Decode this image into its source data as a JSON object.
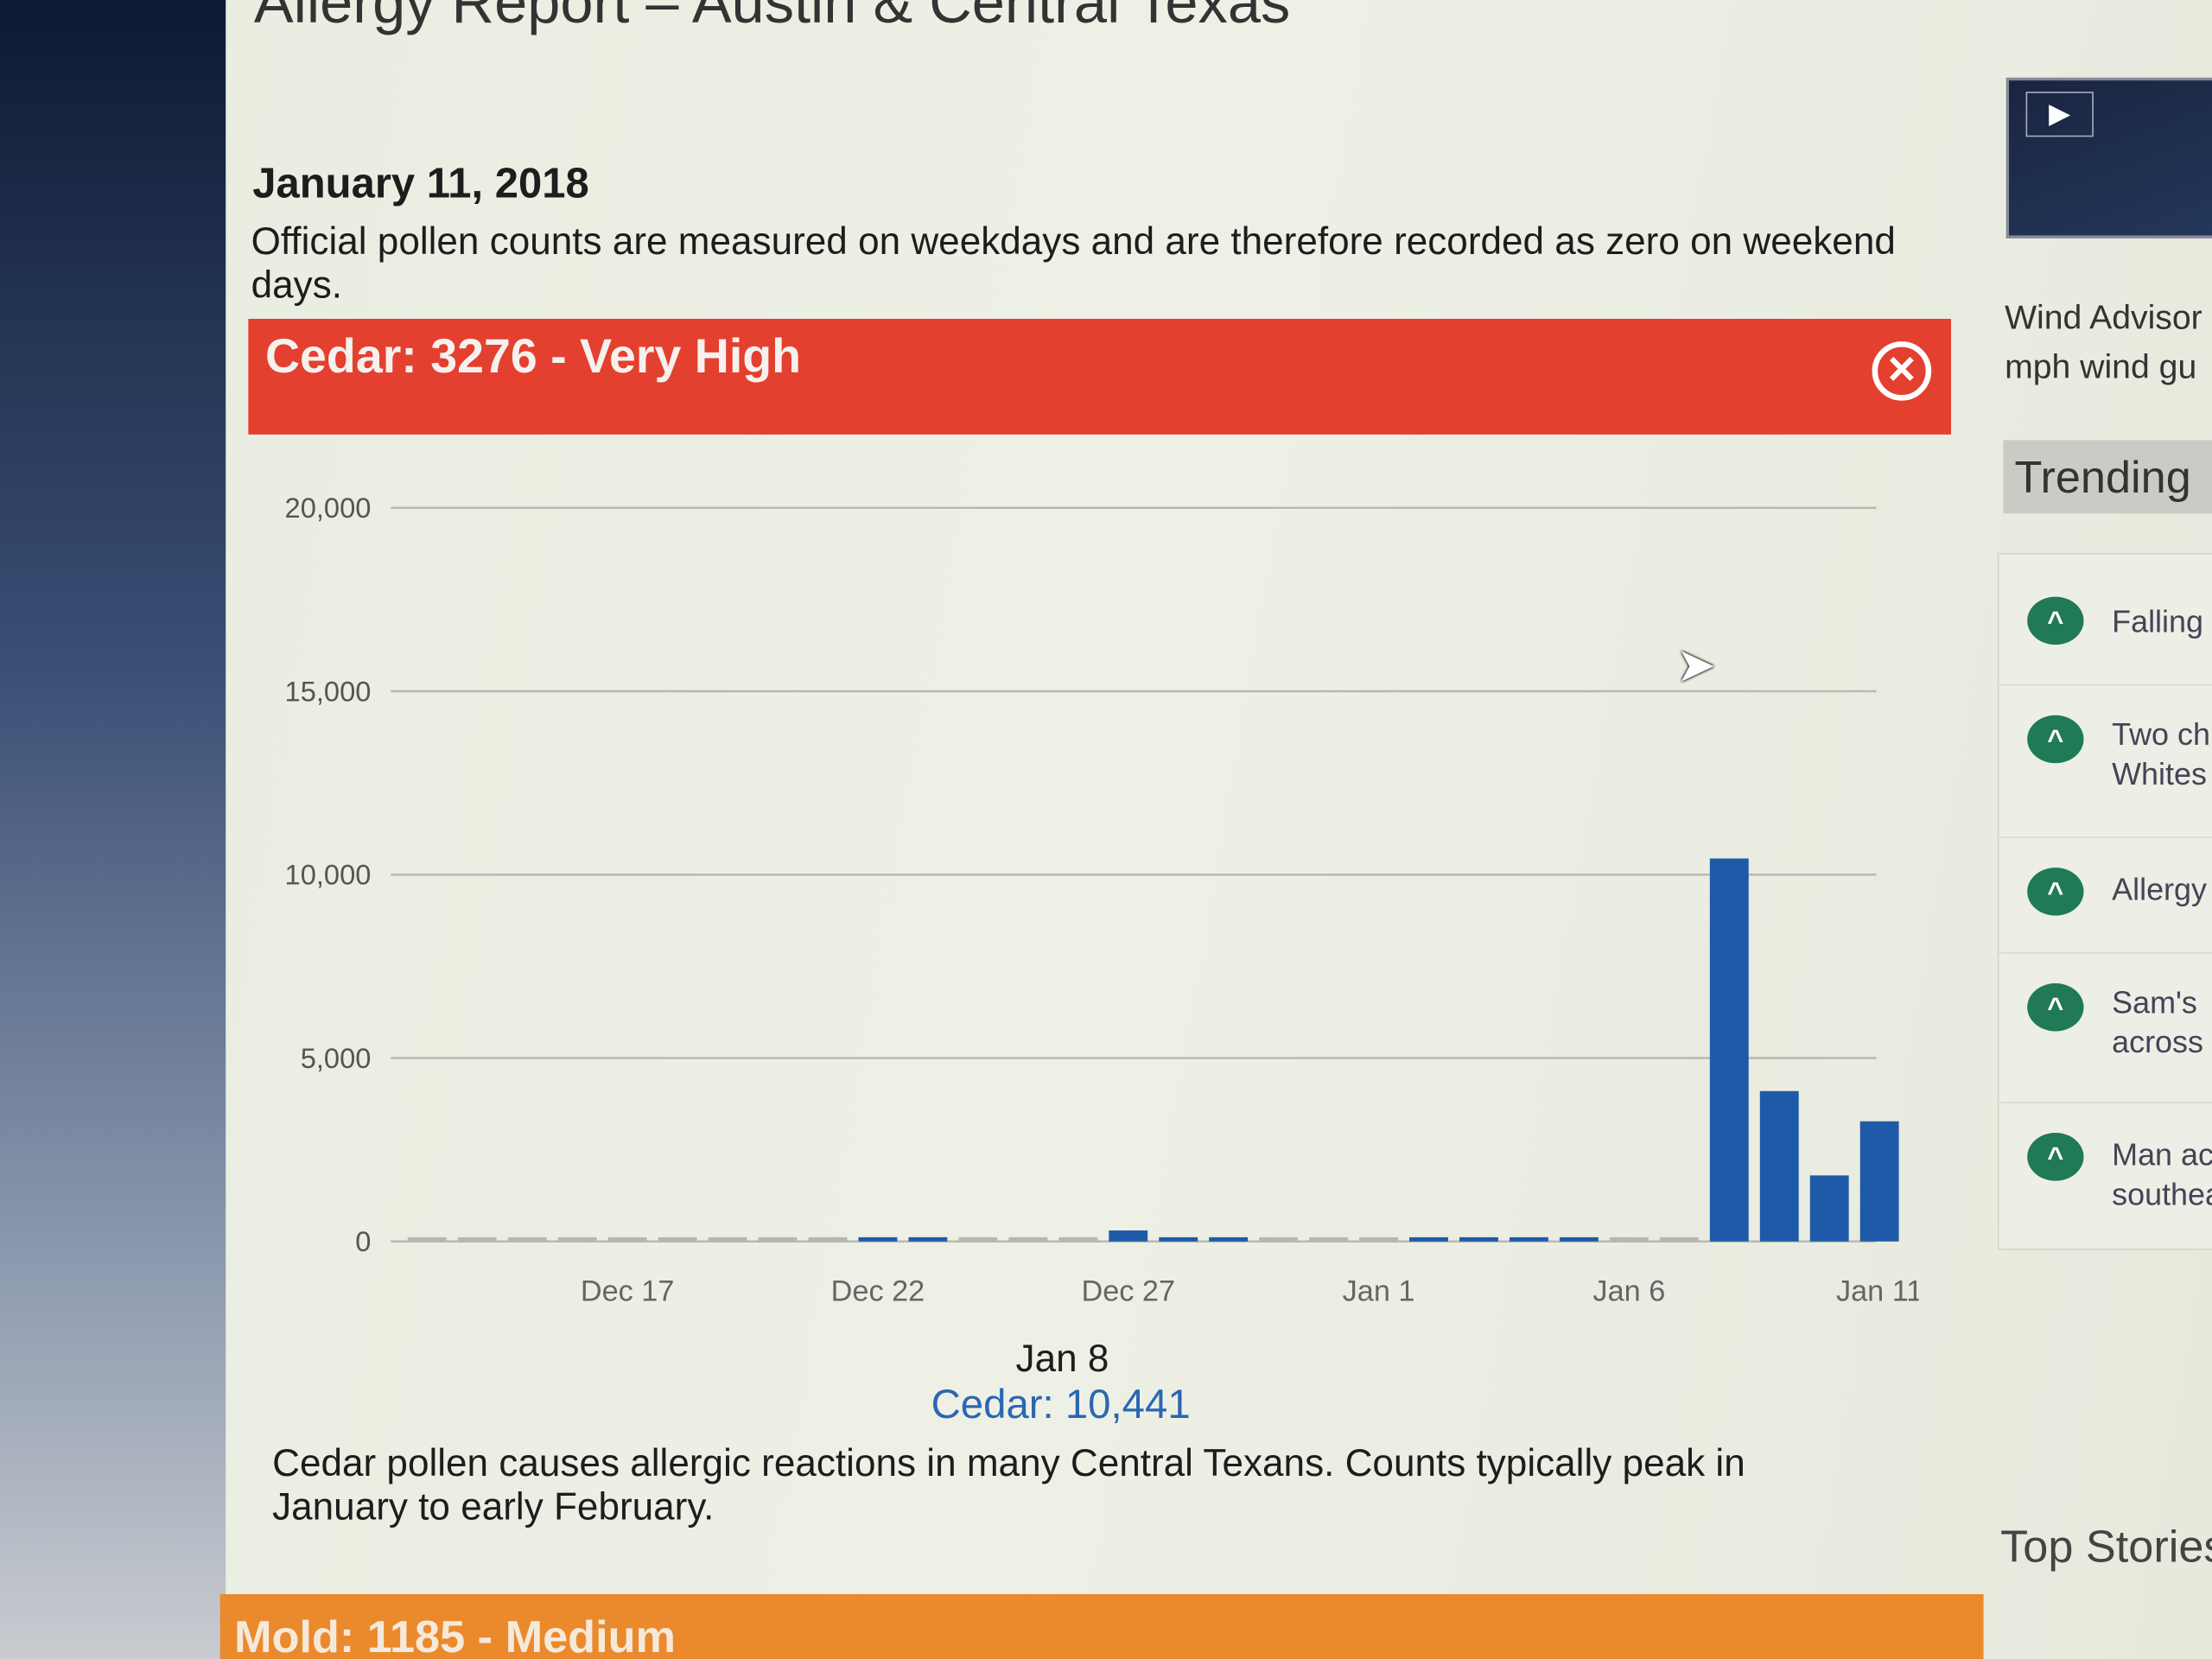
{
  "page": {
    "title": "Allergy Report – Austin & Central Texas",
    "date": "January 11, 2018",
    "note": "Official pollen counts are measured on weekdays and are therefore recorded as zero on weekend days.",
    "banner": {
      "text": "Cedar: 3276 - Very High",
      "color": "#e4402f",
      "close_icon": "circle-x-icon"
    },
    "tooltip": {
      "date": "Jan 8",
      "value": "Cedar: 10,441"
    },
    "description": "Cedar pollen causes allergic reactions in many Central Texans. Counts typically peak in January to early February.",
    "next_banner": {
      "text": "Mold: 1185 - Medium",
      "color": "#ea8a2d"
    }
  },
  "sidebar": {
    "wind": [
      "Wind Advisor",
      "mph wind gu"
    ],
    "trending_title": "Trending",
    "trending": [
      {
        "lines": [
          "Falling"
        ]
      },
      {
        "lines": [
          "Two ch",
          "Whites"
        ]
      },
      {
        "lines": [
          "Allergy"
        ]
      },
      {
        "lines": [
          "Sam's",
          "across"
        ]
      },
      {
        "lines": [
          "Man ac",
          "southea"
        ]
      }
    ],
    "top_stories": "Top Stories"
  },
  "chart_data": {
    "type": "bar",
    "x": [
      "Dec 13",
      "Dec 14",
      "Dec 15",
      "Dec 16",
      "Dec 17",
      "Dec 18",
      "Dec 19",
      "Dec 20",
      "Dec 21",
      "Dec 22",
      "Dec 23",
      "Dec 24",
      "Dec 25",
      "Dec 26",
      "Dec 27",
      "Dec 28",
      "Dec 29",
      "Dec 30",
      "Dec 31",
      "Jan 1",
      "Jan 2",
      "Jan 3",
      "Jan 4",
      "Jan 5",
      "Jan 6",
      "Jan 7",
      "Jan 8",
      "Jan 9",
      "Jan 10",
      "Jan 11"
    ],
    "values": [
      0,
      0,
      0,
      0,
      0,
      0,
      0,
      0,
      0,
      60,
      40,
      0,
      0,
      0,
      300,
      60,
      50,
      0,
      0,
      0,
      40,
      40,
      40,
      40,
      0,
      0,
      10441,
      4100,
      1800,
      3276
    ],
    "xticks": [
      "Dec 17",
      "Dec 22",
      "Dec 27",
      "Jan 1",
      "Jan 6",
      "Jan 11"
    ],
    "yticks": [
      "0",
      "5,000",
      "10,000",
      "15,000",
      "20,000"
    ],
    "ylim": [
      0,
      20000
    ],
    "grid": true,
    "bar_color": "#1f5aa8"
  }
}
